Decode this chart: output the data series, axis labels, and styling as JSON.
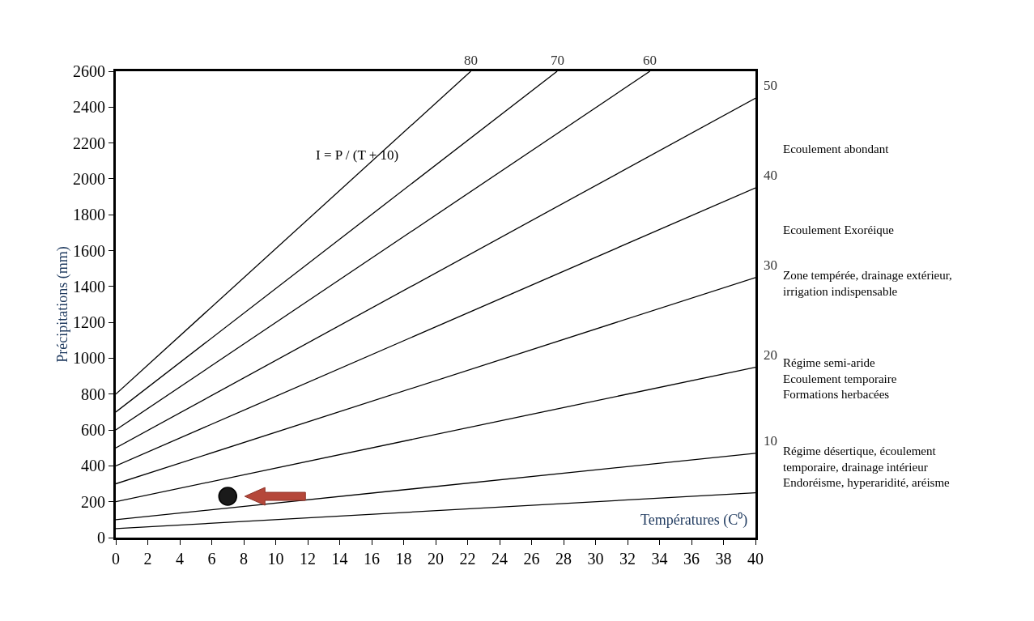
{
  "chart_data": {
    "type": "line",
    "xlabel": "Températures (C⁰)",
    "ylabel": "Précipitations (mm)",
    "xlim": [
      0,
      40
    ],
    "xticks": [
      0,
      2,
      4,
      6,
      8,
      10,
      12,
      14,
      16,
      18,
      20,
      22,
      24,
      26,
      28,
      30,
      32,
      34,
      36,
      38,
      40
    ],
    "ylim": [
      0,
      2600
    ],
    "yticks": [
      0,
      200,
      400,
      600,
      800,
      1000,
      1200,
      1400,
      1600,
      1800,
      2000,
      2200,
      2400,
      2600
    ],
    "grid": false,
    "legend": false,
    "marker": "none",
    "line_style": "solid",
    "series": [
      {
        "color": "#000000",
        "x": [
          0,
          40
        ],
        "values": [
          50,
          250
        ]
      },
      {
        "name": "10",
        "color": "#000000",
        "x": [
          0,
          40
        ],
        "values": [
          100,
          470
        ]
      },
      {
        "name": "20",
        "color": "#000000",
        "x": [
          0,
          40
        ],
        "values": [
          200,
          950
        ]
      },
      {
        "name": "30",
        "color": "#000000",
        "x": [
          0,
          40
        ],
        "values": [
          300,
          1450
        ]
      },
      {
        "name": "40",
        "color": "#000000",
        "x": [
          0,
          40
        ],
        "values": [
          400,
          1950
        ]
      },
      {
        "name": "50",
        "color": "#000000",
        "x": [
          0,
          40
        ],
        "values": [
          500,
          2450
        ]
      },
      {
        "name": "60",
        "color": "#000000",
        "x": [
          0,
          33.4
        ],
        "values": [
          600,
          2600
        ]
      },
      {
        "name": "70",
        "color": "#000000",
        "x": [
          0,
          27.6
        ],
        "values": [
          700,
          2600
        ]
      },
      {
        "name": "80",
        "color": "#000000",
        "x": [
          0,
          22.2
        ],
        "values": [
          800,
          2600
        ]
      },
      {
        "type": "scatter",
        "marker": "circle",
        "color": "#1a1a1a",
        "x": [
          7.0
        ],
        "values": [
          230
        ]
      }
    ],
    "annotations": [
      "I = P / (T + 10)",
      "Ecoulement abondant",
      "Ecoulement Exoréique",
      "Zone tempérée, drainage extérieur,\nirrigation indispensable",
      "Régime semi-aride\nEcoulement temporaire\nFormations herbacées",
      "Régime désertique, écoulement\ntemporaire, drainage intérieur\nEndoréisme, hyperaridité, aréisme"
    ]
  }
}
